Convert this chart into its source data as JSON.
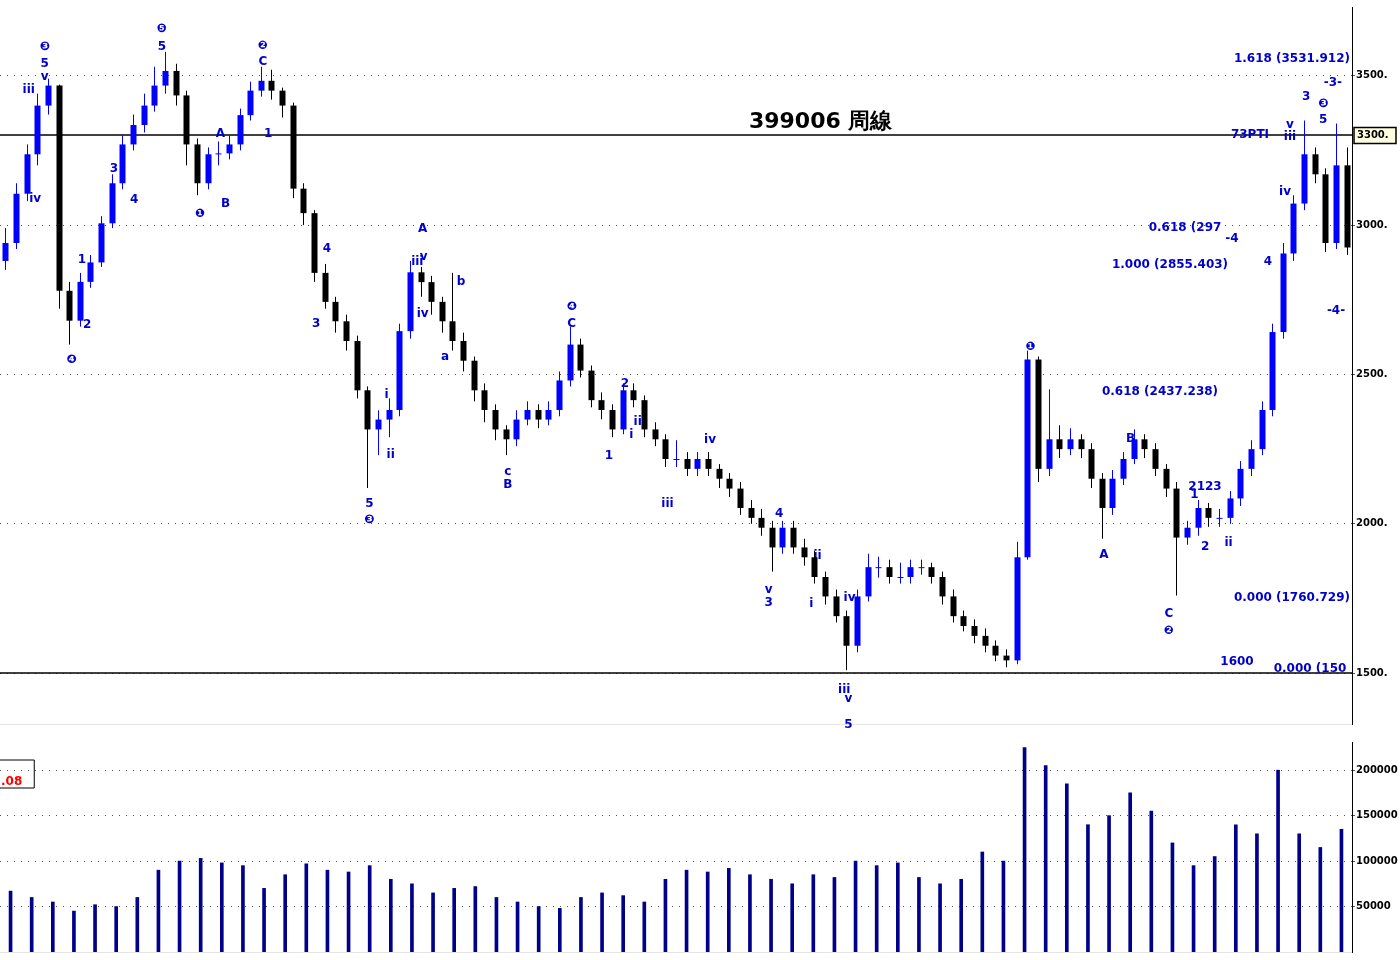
{
  "chart_data": [
    {
      "type": "candlestick",
      "title": "399006 周線",
      "color": "#000000",
      "categories": [
        null,
        null,
        null,
        null,
        null,
        null,
        null,
        null,
        null,
        null,
        null,
        null,
        null,
        null,
        null,
        null,
        null,
        null,
        null,
        null,
        null,
        null,
        null,
        null,
        null,
        null,
        null,
        null,
        null,
        null,
        null,
        null,
        null,
        null,
        null,
        null,
        null,
        null,
        null,
        null,
        null,
        null,
        null,
        null,
        null,
        null,
        null,
        null,
        null,
        null,
        null,
        null,
        null,
        null,
        null,
        null,
        null,
        null,
        null,
        null,
        null,
        null,
        null,
        null,
        null,
        null,
        null,
        null,
        null,
        null,
        null,
        null,
        null,
        null,
        null,
        null,
        null,
        null,
        null,
        null,
        null,
        null,
        null,
        null,
        null,
        null,
        null,
        null,
        null,
        null,
        null,
        null,
        null,
        null,
        null,
        null,
        null,
        null,
        null,
        null,
        null,
        null,
        null,
        null,
        null,
        null,
        null,
        null,
        null,
        null,
        null,
        null,
        null,
        null,
        null,
        null,
        null,
        null,
        null,
        null,
        null,
        null,
        null,
        null,
        null,
        null,
        null
      ],
      "colors": [
        "#0000ff",
        "#0000ff",
        "#0000ff",
        "#0000ff",
        "#0000ff",
        "#000000",
        "#000000",
        "#0000ff",
        "#0000ff",
        "#0000ff",
        "#0000ff",
        "#0000ff",
        "#0000ff",
        "#0000ff",
        "#0000ff",
        "#0000ff",
        "#000000",
        "#000000",
        "#000000",
        "#0000ff",
        "#0000ff",
        "#0000ff",
        "#0000ff",
        "#0000ff",
        "#0000ff",
        "#000000",
        "#000000",
        "#000000",
        "#000000",
        "#000000",
        "#000000",
        "#000000",
        "#000000",
        "#000000",
        "#000000",
        "#0000ff",
        "#0000ff",
        "#0000ff",
        "#0000ff",
        "#000000",
        "#000000",
        "#000000",
        "#000000",
        "#000000",
        "#000000",
        "#000000",
        "#000000",
        "#000000",
        "#0000ff",
        "#0000ff",
        "#000000",
        "#0000ff",
        "#0000ff",
        "#0000ff",
        "#000000",
        "#000000",
        "#000000",
        "#000000",
        "#0000ff",
        "#000000",
        "#000000",
        "#000000",
        "#000000",
        "#0000ff",
        "#000000",
        "#0000ff",
        "#000000",
        "#000000",
        "#000000",
        "#000000",
        "#000000",
        "#000000",
        "#000000",
        "#0000ff",
        "#000000",
        "#000000",
        "#000000",
        "#000000",
        "#000000",
        "#000000",
        "#0000ff",
        "#0000ff",
        "#0000ff",
        "#000000",
        "#0000ff",
        "#0000ff",
        "#0000ff",
        "#000000",
        "#000000",
        "#000000",
        "#000000",
        "#000000",
        "#000000",
        "#000000",
        "#000000",
        "#0000ff",
        "#0000ff",
        "#000000",
        "#0000ff",
        "#000000",
        "#0000ff",
        "#000000",
        "#000000",
        "#000000",
        "#0000ff",
        "#0000ff",
        "#0000ff",
        "#000000",
        "#000000",
        "#000000",
        "#000000",
        "#0000ff",
        "#0000ff",
        "#000000",
        "#0000ff",
        "#0000ff",
        "#0000ff",
        "#0000ff",
        "#0000ff",
        "#0000ff",
        "#0000ff",
        "#0000ff",
        "#0000ff",
        "#000000",
        "#000000",
        "#0000ff",
        "#000000"
      ],
      "ohlc": [
        [
          2880,
          2990,
          2850,
          2940
        ],
        [
          2940,
          3140,
          2920,
          3105
        ],
        [
          3105,
          3270,
          3080,
          3237
        ],
        [
          3237,
          3440,
          3200,
          3400
        ],
        [
          3400,
          3490,
          3370,
          3467
        ],
        [
          3467,
          3470,
          2720,
          2780
        ],
        [
          2780,
          2810,
          2600,
          2680
        ],
        [
          2680,
          2840,
          2660,
          2810
        ],
        [
          2810,
          2900,
          2790,
          2875
        ],
        [
          2875,
          3030,
          2860,
          3006
        ],
        [
          3006,
          3170,
          2990,
          3140
        ],
        [
          3140,
          3300,
          3120,
          3270
        ],
        [
          3270,
          3370,
          3250,
          3335
        ],
        [
          3335,
          3440,
          3310,
          3400
        ],
        [
          3400,
          3530,
          3380,
          3467
        ],
        [
          3467,
          3580,
          3440,
          3516
        ],
        [
          3516,
          3540,
          3400,
          3434
        ],
        [
          3434,
          3450,
          3200,
          3270
        ],
        [
          3270,
          3290,
          3100,
          3140
        ],
        [
          3140,
          3260,
          3120,
          3237
        ],
        [
          3237,
          3280,
          3200,
          3240
        ],
        [
          3240,
          3300,
          3220,
          3270
        ],
        [
          3270,
          3390,
          3250,
          3368
        ],
        [
          3368,
          3480,
          3350,
          3450
        ],
        [
          3450,
          3530,
          3430,
          3483
        ],
        [
          3483,
          3520,
          3420,
          3450
        ],
        [
          3450,
          3460,
          3360,
          3400
        ],
        [
          3400,
          3410,
          3090,
          3122
        ],
        [
          3122,
          3140,
          3000,
          3040
        ],
        [
          3040,
          3050,
          2810,
          2840
        ],
        [
          2840,
          2870,
          2720,
          2743
        ],
        [
          2743,
          2760,
          2640,
          2678
        ],
        [
          2678,
          2700,
          2580,
          2612
        ],
        [
          2612,
          2630,
          2420,
          2447
        ],
        [
          2447,
          2460,
          2120,
          2316
        ],
        [
          2316,
          2380,
          2230,
          2349
        ],
        [
          2349,
          2420,
          2290,
          2381
        ],
        [
          2381,
          2670,
          2360,
          2645
        ],
        [
          2645,
          2880,
          2620,
          2842
        ],
        [
          2842,
          2860,
          2760,
          2809
        ],
        [
          2809,
          2830,
          2700,
          2743
        ],
        [
          2743,
          2760,
          2640,
          2678
        ],
        [
          2678,
          2840,
          2580,
          2612
        ],
        [
          2612,
          2640,
          2510,
          2546
        ],
        [
          2546,
          2560,
          2410,
          2447
        ],
        [
          2447,
          2470,
          2340,
          2381
        ],
        [
          2381,
          2400,
          2280,
          2316
        ],
        [
          2316,
          2330,
          2230,
          2283
        ],
        [
          2283,
          2380,
          2260,
          2349
        ],
        [
          2349,
          2410,
          2330,
          2381
        ],
        [
          2381,
          2400,
          2320,
          2349
        ],
        [
          2349,
          2410,
          2330,
          2381
        ],
        [
          2381,
          2510,
          2360,
          2480
        ],
        [
          2480,
          2660,
          2460,
          2600
        ],
        [
          2600,
          2620,
          2490,
          2513
        ],
        [
          2513,
          2530,
          2390,
          2414
        ],
        [
          2414,
          2440,
          2350,
          2381
        ],
        [
          2381,
          2400,
          2290,
          2316
        ],
        [
          2316,
          2470,
          2300,
          2447
        ],
        [
          2447,
          2470,
          2390,
          2414
        ],
        [
          2414,
          2430,
          2290,
          2316
        ],
        [
          2316,
          2340,
          2260,
          2283
        ],
        [
          2283,
          2300,
          2190,
          2217
        ],
        [
          2217,
          2280,
          2190,
          2217
        ],
        [
          2217,
          2240,
          2160,
          2184
        ],
        [
          2184,
          2240,
          2160,
          2217
        ],
        [
          2217,
          2240,
          2160,
          2184
        ],
        [
          2184,
          2200,
          2120,
          2151
        ],
        [
          2151,
          2170,
          2090,
          2118
        ],
        [
          2118,
          2140,
          2030,
          2053
        ],
        [
          2053,
          2080,
          2000,
          2020
        ],
        [
          2020,
          2050,
          1960,
          1987
        ],
        [
          1987,
          2010,
          1840,
          1921
        ],
        [
          1921,
          2010,
          1900,
          1987
        ],
        [
          1987,
          2010,
          1900,
          1921
        ],
        [
          1921,
          1950,
          1860,
          1888
        ],
        [
          1888,
          1910,
          1800,
          1822
        ],
        [
          1822,
          1840,
          1730,
          1757
        ],
        [
          1757,
          1780,
          1670,
          1691
        ],
        [
          1691,
          1710,
          1510,
          1592
        ],
        [
          1592,
          1780,
          1570,
          1757
        ],
        [
          1757,
          1900,
          1740,
          1855
        ],
        [
          1855,
          1890,
          1820,
          1855
        ],
        [
          1855,
          1880,
          1800,
          1822
        ],
        [
          1822,
          1870,
          1800,
          1822
        ],
        [
          1822,
          1880,
          1800,
          1855
        ],
        [
          1855,
          1880,
          1830,
          1855
        ],
        [
          1855,
          1870,
          1800,
          1822
        ],
        [
          1822,
          1840,
          1730,
          1757
        ],
        [
          1757,
          1780,
          1670,
          1691
        ],
        [
          1691,
          1710,
          1640,
          1658
        ],
        [
          1658,
          1680,
          1600,
          1625
        ],
        [
          1625,
          1650,
          1570,
          1592
        ],
        [
          1592,
          1610,
          1540,
          1559
        ],
        [
          1559,
          1580,
          1520,
          1543
        ],
        [
          1543,
          1940,
          1530,
          1888
        ],
        [
          1888,
          2580,
          1880,
          2550
        ],
        [
          2550,
          2560,
          2140,
          2184
        ],
        [
          2184,
          2450,
          2160,
          2283
        ],
        [
          2283,
          2330,
          2220,
          2250
        ],
        [
          2250,
          2320,
          2230,
          2283
        ],
        [
          2283,
          2300,
          2220,
          2250
        ],
        [
          2250,
          2270,
          2120,
          2151
        ],
        [
          2151,
          2170,
          1950,
          2053
        ],
        [
          2053,
          2180,
          2030,
          2151
        ],
        [
          2151,
          2240,
          2130,
          2217
        ],
        [
          2217,
          2316,
          2200,
          2283
        ],
        [
          2283,
          2300,
          2220,
          2250
        ],
        [
          2250,
          2270,
          2160,
          2184
        ],
        [
          2184,
          2200,
          2090,
          2118
        ],
        [
          2118,
          2140,
          1760,
          1954
        ],
        [
          1954,
          2010,
          1930,
          1987
        ],
        [
          1987,
          2080,
          1960,
          2053
        ],
        [
          2053,
          2070,
          1990,
          2020
        ],
        [
          2020,
          2050,
          1990,
          2020
        ],
        [
          2020,
          2110,
          2000,
          2085
        ],
        [
          2085,
          2210,
          2060,
          2184
        ],
        [
          2184,
          2280,
          2160,
          2250
        ],
        [
          2250,
          2410,
          2230,
          2381
        ],
        [
          2381,
          2670,
          2360,
          2642
        ],
        [
          2642,
          2940,
          2620,
          2905
        ],
        [
          2905,
          3100,
          2880,
          3072
        ],
        [
          3072,
          3350,
          3050,
          3237
        ],
        [
          3237,
          3260,
          3140,
          3170
        ],
        [
          3170,
          3190,
          2910,
          2940
        ],
        [
          2940,
          3340,
          2920,
          3200
        ],
        [
          3200,
          3260,
          2900,
          2925
        ]
      ],
      "ylim": [
        1330,
        3730
      ],
      "yticks": [
        {
          "value": 1500,
          "label": "1500."
        },
        {
          "value": 2000,
          "label": "2000."
        },
        {
          "value": 2500,
          "label": "2500."
        },
        {
          "value": 3000,
          "label": "3000."
        },
        {
          "value": 3500,
          "label": "3500."
        }
      ],
      "tick_labels": "y",
      "grid": "y",
      "ref_lines": [
        {
          "axis": "y",
          "value": 3300,
          "label": "3300.",
          "color": "#000000"
        },
        {
          "axis": "y",
          "value": 1500,
          "color": "#000000"
        }
      ],
      "annotations": [
        "❸",
        "5",
        "v",
        "iii",
        "iv",
        "❺",
        "5",
        "❷",
        "C",
        "A",
        "B",
        "1",
        "❶",
        "❹",
        "1",
        "2",
        "3",
        "4",
        "4",
        "3",
        "A",
        "iii",
        "v",
        "iv",
        "b",
        "a",
        "i",
        "ii",
        "5",
        "❸",
        "c",
        "B",
        "❹",
        "C",
        "2",
        "ii",
        "i",
        "1",
        "iv",
        "iii",
        "4",
        "v",
        "3",
        "ii",
        "i",
        "iv",
        "iii",
        "v",
        "5",
        "❶",
        "A",
        "B",
        "C",
        "❷",
        "1",
        "2",
        "ii",
        "2123",
        "3",
        "❸",
        "-3-",
        "5",
        "v",
        "iii",
        "iv",
        "4",
        "-4",
        "-4-",
        "1.618 (3531.912)",
        "0.618 (297",
        "1.000 (2855.403)",
        "0.618 (2437.238)",
        "0.000 (1760.729)",
        "0.000 (150",
        "1600",
        "73PTI"
      ]
    },
    {
      "type": "bar",
      "color": "#00008b",
      "categories": [
        null,
        null,
        null,
        null,
        null,
        null,
        null,
        null,
        null,
        null,
        null,
        null,
        null,
        null,
        null,
        null,
        null,
        null,
        null,
        null,
        null,
        null,
        null,
        null,
        null,
        null,
        null,
        null,
        null,
        null,
        null,
        null,
        null,
        null,
        null,
        null,
        null,
        null,
        null,
        null,
        null,
        null,
        null,
        null,
        null,
        null,
        null,
        null,
        null,
        null,
        null,
        null,
        null,
        null,
        null,
        null,
        null,
        null,
        null,
        null,
        null,
        null,
        null,
        null
      ],
      "values": [
        67000,
        60000,
        55000,
        45000,
        52000,
        50000,
        60000,
        90000,
        100000,
        103000,
        98000,
        95000,
        70000,
        85000,
        97000,
        90000,
        88000,
        95000,
        80000,
        75000,
        65000,
        70000,
        72000,
        60000,
        55000,
        50000,
        48000,
        60000,
        65000,
        62000,
        55000,
        80000,
        90000,
        88000,
        92000,
        85000,
        80000,
        75000,
        85000,
        82000,
        100000,
        95000,
        98000,
        82000,
        75000,
        80000,
        110000,
        100000,
        225000,
        205000,
        185000,
        140000,
        150000,
        175000,
        155000,
        120000,
        95000,
        105000,
        140000,
        130000,
        200000,
        130000,
        115000,
        135000
      ],
      "ylim": [
        0,
        231000
      ],
      "yticks": [
        50000,
        100000,
        150000,
        200000
      ],
      "tick_labels": "y",
      "grid": "y",
      "annotations": [
        ".08"
      ]
    }
  ]
}
